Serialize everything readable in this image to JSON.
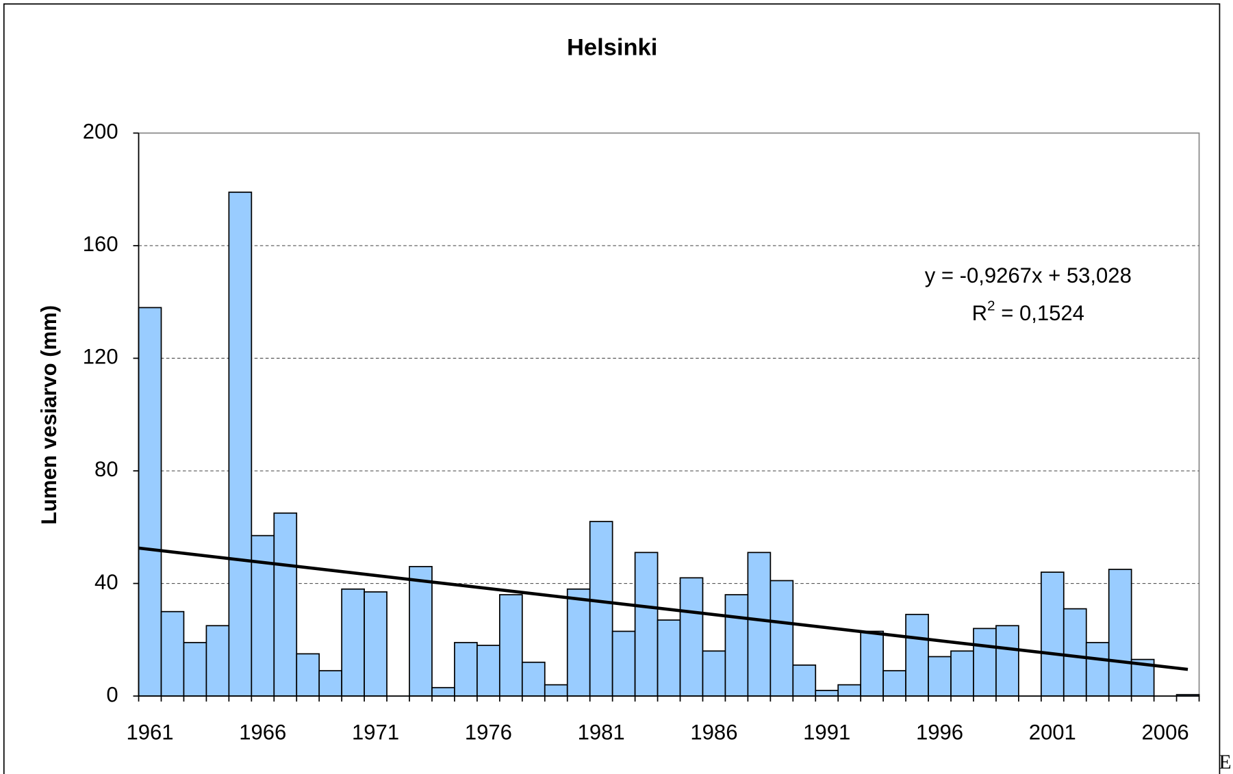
{
  "chart_data": {
    "type": "bar",
    "title": "Helsinki",
    "y_label": "Lumen vesiarvo (mm)",
    "categories": [
      "1961",
      null,
      null,
      null,
      null,
      "1966",
      null,
      null,
      null,
      null,
      "1971",
      null,
      null,
      null,
      null,
      "1976",
      null,
      null,
      null,
      null,
      "1981",
      null,
      null,
      null,
      null,
      "1986",
      null,
      null,
      null,
      null,
      "1991",
      null,
      null,
      null,
      null,
      "1996",
      null,
      null,
      null,
      null,
      "2001",
      null,
      null,
      null,
      null,
      "2006",
      null
    ],
    "values": [
      138,
      30,
      19,
      25,
      179,
      57,
      65,
      15,
      9,
      38,
      37,
      0,
      46,
      3,
      19,
      18,
      36,
      12,
      4,
      38,
      62,
      23,
      51,
      27,
      42,
      16,
      36,
      51,
      41,
      11,
      2,
      4,
      23,
      9,
      29,
      14,
      16,
      24,
      25,
      0,
      44,
      31,
      19,
      45,
      13,
      0,
      0.5
    ],
    "color": "#99ccff",
    "ylim": [
      0,
      200
    ],
    "yticks": [
      0,
      40,
      80,
      120,
      160,
      200
    ],
    "grid": true,
    "trendline": {
      "slope": -0.9267,
      "intercept": 53.028,
      "equation": "y = -0,9267x + 53,028",
      "r2_base": "R",
      "r2_sup": "2",
      "r2_rest": " = 0,1524"
    },
    "corner_text": "E"
  }
}
